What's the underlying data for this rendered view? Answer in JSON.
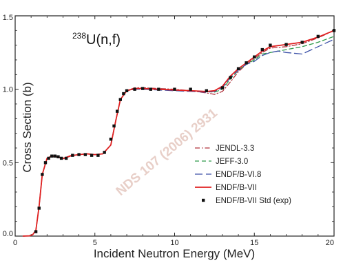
{
  "chart_data": {
    "type": "line",
    "xlabel": "Incident Neutron Energy (MeV)",
    "ylabel": "Cross Section (b)",
    "xlim": [
      0,
      20
    ],
    "ylim": [
      0,
      1.5
    ],
    "xticks": [
      0,
      5,
      10,
      15,
      20
    ],
    "yticks": [
      0.0,
      0.5,
      1.0,
      1.5
    ],
    "xtick_labels": [
      "0",
      "5",
      "10",
      "15",
      "20"
    ],
    "ytick_labels": [
      "0.0",
      "0.5",
      "1.0",
      "1.5"
    ],
    "annotation": {
      "sup": "238",
      "text": "U(n,f)"
    },
    "watermark": "NDS 107 (2006) 2931",
    "legend_position": "lower-right",
    "grid": false,
    "series": [
      {
        "name": "JENDL-3.3",
        "color": "#b0303a",
        "style": "dash-dot",
        "x": [
          0.5,
          0.9,
          1.1,
          1.3,
          1.5,
          1.7,
          2.0,
          2.3,
          2.6,
          3.0,
          3.5,
          4.0,
          4.5,
          5.0,
          5.5,
          6.0,
          6.3,
          6.6,
          7.0,
          7.5,
          8.0,
          9.0,
          10.0,
          11.0,
          12.0,
          12.5,
          13.0,
          13.5,
          14.0,
          14.5,
          15.0,
          15.5,
          16.0,
          17.0,
          18.0,
          19.0,
          20.0
        ],
        "y": [
          0.0,
          0.002,
          0.01,
          0.04,
          0.2,
          0.42,
          0.53,
          0.545,
          0.54,
          0.525,
          0.545,
          0.555,
          0.56,
          0.555,
          0.56,
          0.62,
          0.78,
          0.93,
          0.99,
          1.01,
          1.01,
          1.005,
          1.0,
          0.99,
          0.975,
          0.965,
          0.985,
          1.05,
          1.12,
          1.17,
          1.21,
          1.25,
          1.28,
          1.29,
          1.31,
          1.35,
          1.4
        ]
      },
      {
        "name": "JEFF-3.0",
        "color": "#2f9a4a",
        "style": "dashed",
        "x": [
          0.5,
          0.9,
          1.1,
          1.3,
          1.5,
          1.7,
          2.0,
          2.3,
          2.6,
          3.0,
          3.5,
          4.0,
          4.5,
          5.0,
          5.5,
          6.0,
          6.3,
          6.6,
          7.0,
          7.5,
          8.0,
          9.0,
          10.0,
          11.0,
          12.0,
          12.5,
          13.0,
          13.5,
          14.0,
          14.5,
          15.0,
          15.5,
          16.0,
          17.0,
          18.0,
          19.0,
          20.0
        ],
        "y": [
          0.0,
          0.002,
          0.01,
          0.04,
          0.2,
          0.42,
          0.53,
          0.545,
          0.54,
          0.528,
          0.548,
          0.555,
          0.56,
          0.555,
          0.56,
          0.62,
          0.78,
          0.93,
          0.99,
          1.0,
          1.005,
          1.0,
          0.995,
          0.99,
          0.985,
          0.98,
          1.0,
          1.07,
          1.13,
          1.17,
          1.2,
          1.24,
          1.25,
          1.27,
          1.29,
          1.32,
          1.36
        ]
      },
      {
        "name": "ENDF/B-VI.8",
        "color": "#3d52a8",
        "style": "long-dash",
        "x": [
          0.5,
          0.9,
          1.1,
          1.3,
          1.5,
          1.7,
          2.0,
          2.3,
          2.6,
          3.0,
          3.5,
          4.0,
          4.5,
          5.0,
          5.5,
          6.0,
          6.3,
          6.6,
          7.0,
          7.5,
          8.0,
          9.0,
          10.0,
          11.0,
          12.0,
          12.5,
          13.0,
          13.5,
          14.0,
          14.5,
          15.0,
          15.5,
          16.0,
          16.5,
          17.0,
          18.0,
          19.0,
          20.0
        ],
        "y": [
          0.0,
          0.002,
          0.01,
          0.04,
          0.2,
          0.42,
          0.53,
          0.545,
          0.54,
          0.528,
          0.548,
          0.555,
          0.56,
          0.555,
          0.56,
          0.62,
          0.78,
          0.93,
          0.99,
          1.0,
          1.0,
          0.995,
          0.99,
          0.985,
          0.98,
          0.985,
          1.01,
          1.08,
          1.13,
          1.17,
          1.19,
          1.23,
          1.25,
          1.26,
          1.25,
          1.24,
          1.29,
          1.34
        ]
      },
      {
        "name": "ENDF/B-VII",
        "color": "#e02020",
        "style": "solid",
        "x": [
          0.5,
          0.9,
          1.1,
          1.3,
          1.5,
          1.7,
          2.0,
          2.3,
          2.6,
          3.0,
          3.5,
          4.0,
          4.5,
          5.0,
          5.5,
          6.0,
          6.3,
          6.6,
          7.0,
          7.5,
          8.0,
          9.0,
          10.0,
          11.0,
          12.0,
          12.5,
          13.0,
          13.5,
          14.0,
          14.5,
          15.0,
          15.5,
          16.0,
          17.0,
          18.0,
          19.0,
          20.0
        ],
        "y": [
          0.0,
          0.002,
          0.01,
          0.04,
          0.2,
          0.42,
          0.53,
          0.545,
          0.54,
          0.528,
          0.548,
          0.555,
          0.56,
          0.555,
          0.56,
          0.62,
          0.78,
          0.93,
          0.99,
          1.005,
          1.005,
          1.0,
          0.995,
          0.99,
          0.985,
          0.99,
          1.02,
          1.09,
          1.14,
          1.18,
          1.22,
          1.26,
          1.29,
          1.305,
          1.32,
          1.355,
          1.4
        ]
      },
      {
        "name": "ENDF/B-VII Std (exp)",
        "color": "#111111",
        "style": "markers",
        "x": [
          1.3,
          1.5,
          1.7,
          1.9,
          2.1,
          2.3,
          2.5,
          2.7,
          2.9,
          3.2,
          3.6,
          4.0,
          4.4,
          4.8,
          5.2,
          5.6,
          6.0,
          6.2,
          6.4,
          6.6,
          6.8,
          7.0,
          7.5,
          8.0,
          8.5,
          9.0,
          10.0,
          11.0,
          12.0,
          13.0,
          13.5,
          14.0,
          14.5,
          15.0,
          15.5,
          16.0,
          17.0,
          18.0,
          19.0,
          20.0
        ],
        "y": [
          0.03,
          0.19,
          0.42,
          0.5,
          0.53,
          0.545,
          0.545,
          0.54,
          0.53,
          0.53,
          0.55,
          0.555,
          0.555,
          0.55,
          0.55,
          0.57,
          0.66,
          0.75,
          0.85,
          0.93,
          0.97,
          0.99,
          1.0,
          1.005,
          1.0,
          1.0,
          1.0,
          1.0,
          0.99,
          1.01,
          1.08,
          1.14,
          1.18,
          1.22,
          1.27,
          1.3,
          1.305,
          1.32,
          1.36,
          1.4
        ]
      }
    ]
  }
}
